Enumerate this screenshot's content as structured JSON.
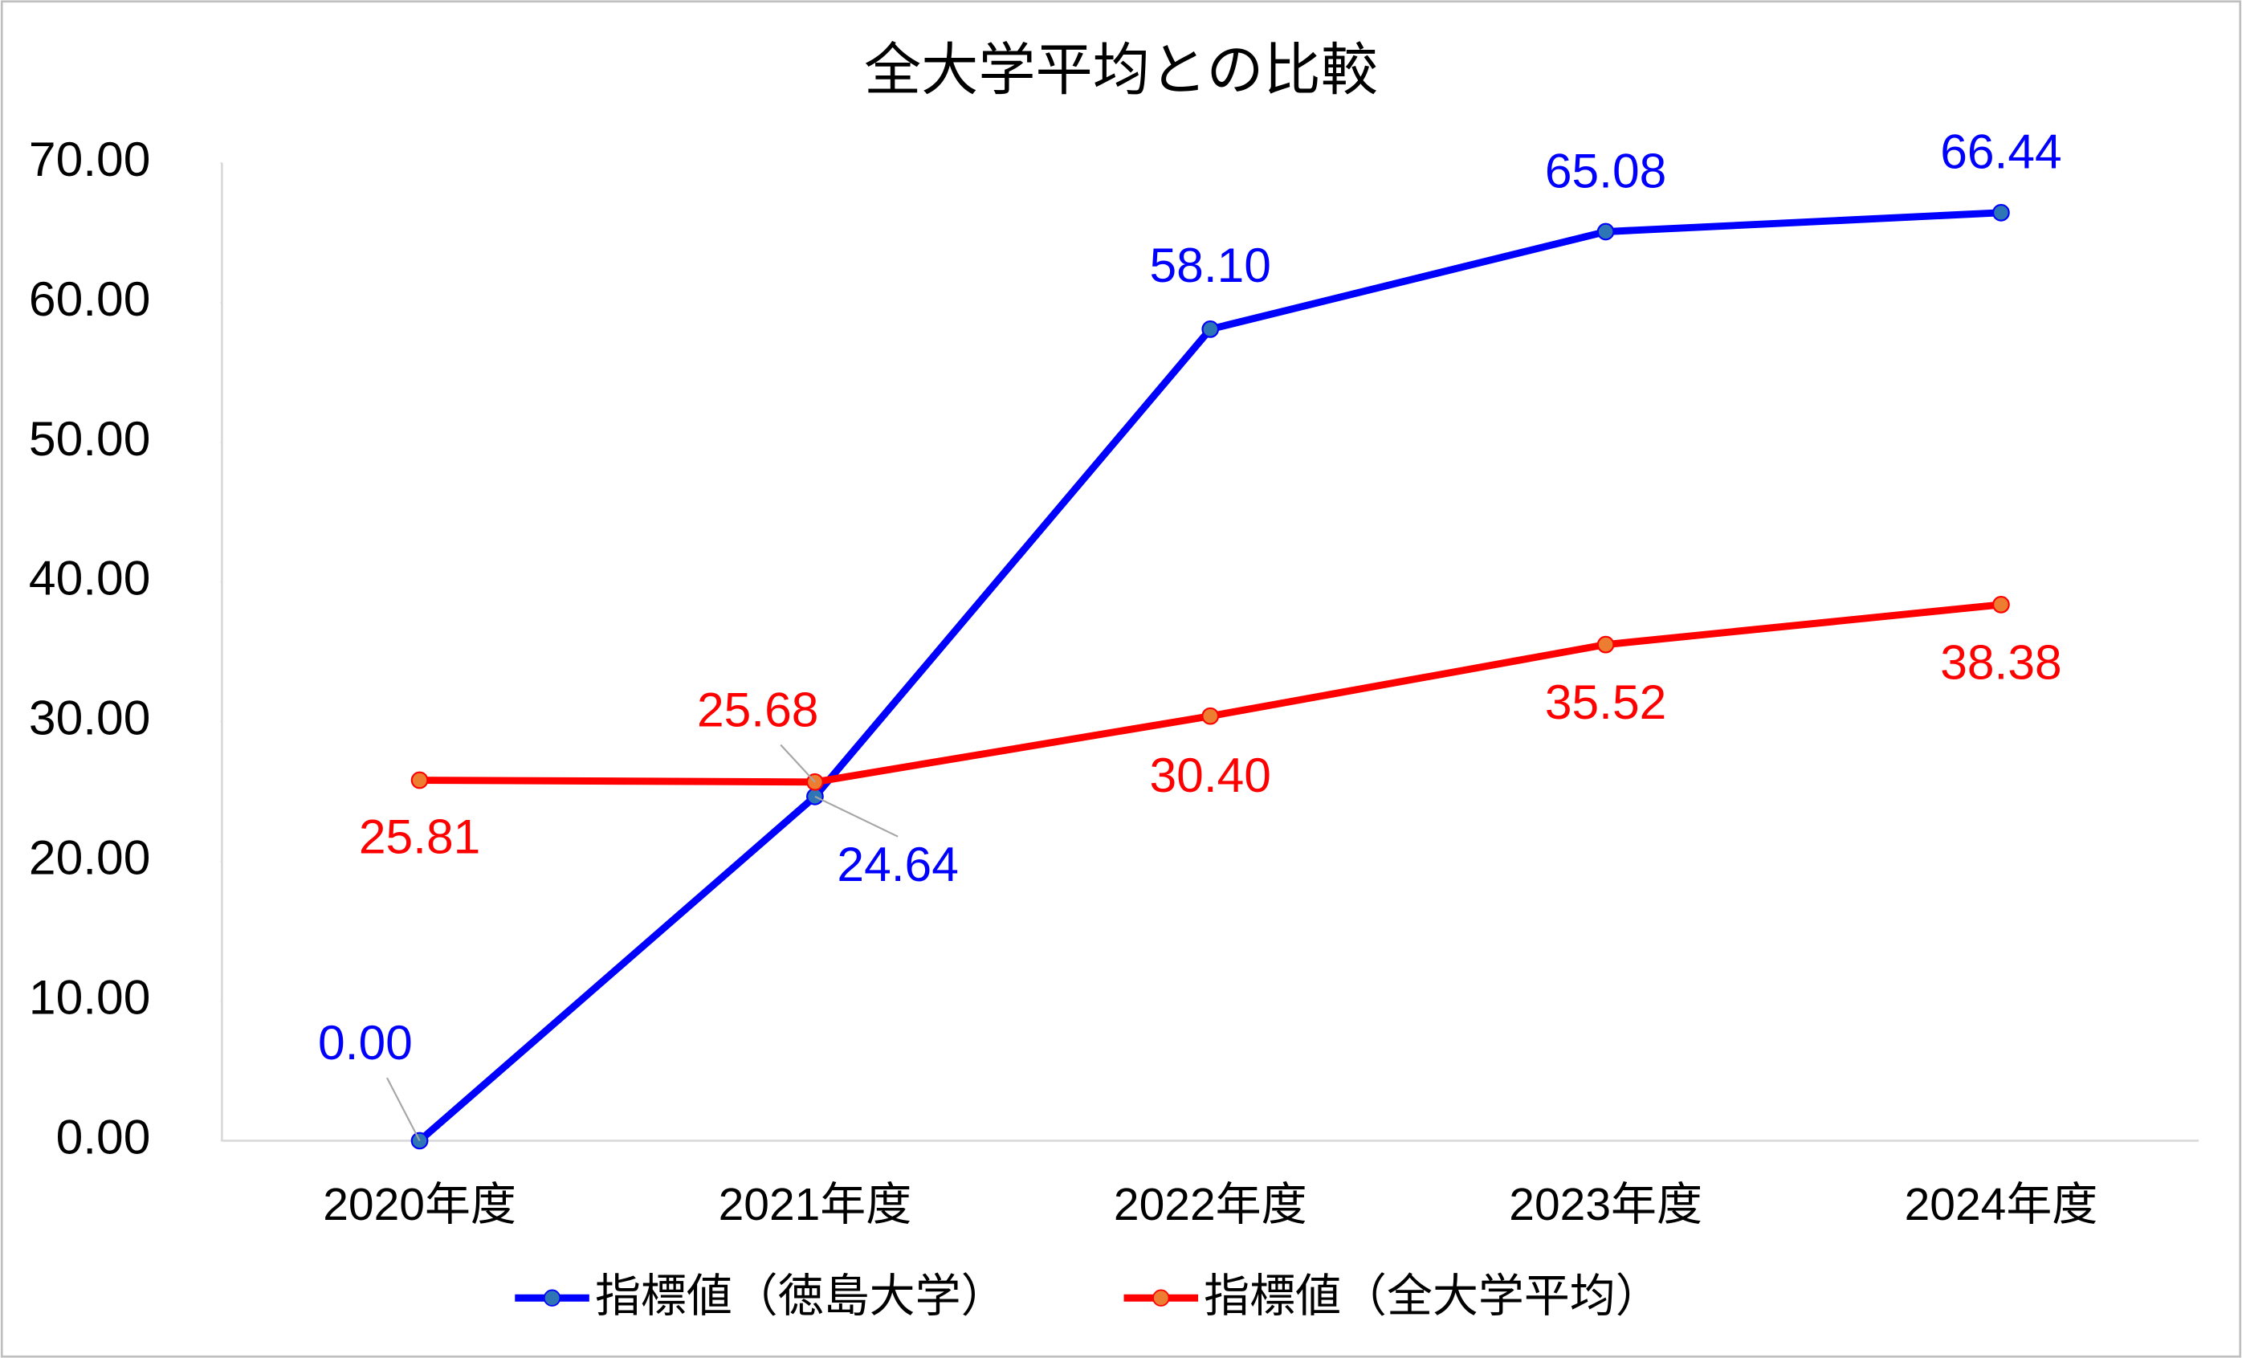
{
  "chart_data": {
    "type": "line",
    "title": "全大学平均との比較",
    "categories": [
      "2020年度",
      "2021年度",
      "2022年度",
      "2023年度",
      "2024年度"
    ],
    "series": [
      {
        "name": "指標値（徳島大学）",
        "color": "#0000ff",
        "marker_color": "#2e75b6",
        "values": [
          0,
          24.64,
          58.1,
          65.08,
          66.44
        ],
        "value_labels": [
          "0.00",
          "24.64",
          "58.10",
          "65.08",
          "66.44"
        ]
      },
      {
        "name": "指標値（全大学平均）",
        "color": "#ff0000",
        "marker_color": "#ed7d31",
        "values": [
          25.81,
          25.68,
          30.4,
          35.52,
          38.38
        ],
        "value_labels": [
          "25.81",
          "25.68",
          "30.40",
          "35.52",
          "38.38"
        ]
      }
    ],
    "ylim": [
      0,
      70
    ],
    "yticks": [
      {
        "value": 0,
        "label": "0.00"
      },
      {
        "value": 10,
        "label": "10.00"
      },
      {
        "value": 20,
        "label": "20.00"
      },
      {
        "value": 30,
        "label": "30.00"
      },
      {
        "value": 40,
        "label": "40.00"
      },
      {
        "value": 50,
        "label": "50.00"
      },
      {
        "value": 60,
        "label": "60.00"
      },
      {
        "value": 70,
        "label": "70.00"
      }
    ],
    "grid": false,
    "legend": "bottom"
  }
}
